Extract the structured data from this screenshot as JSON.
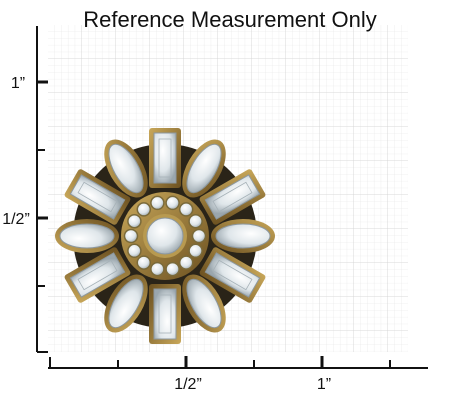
{
  "header": {
    "title": "Reference Measurement Only"
  },
  "vertical_ruler": {
    "labels": [
      "1”",
      "1/2”"
    ]
  },
  "horizontal_ruler": {
    "labels": [
      "1/2”",
      "1”"
    ]
  }
}
